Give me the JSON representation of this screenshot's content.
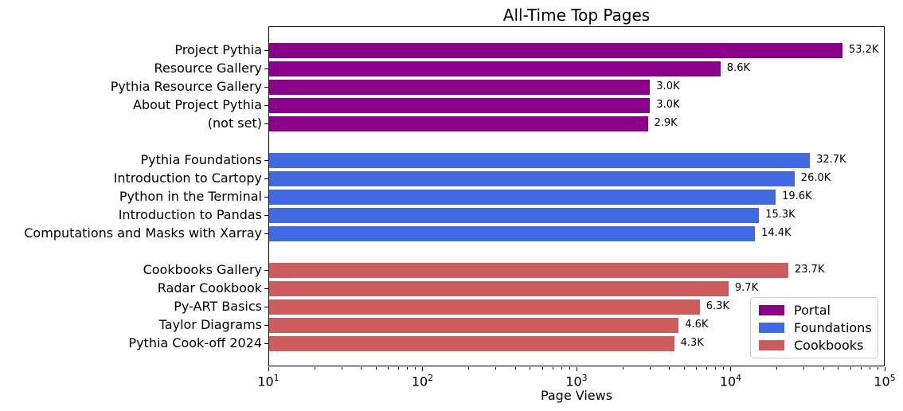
{
  "chart_data": {
    "type": "bar",
    "orientation": "horizontal",
    "title": "All-Time Top Pages",
    "xlabel": "Page Views",
    "x_scale": "log",
    "xlim": [
      10,
      100000
    ],
    "grid": false,
    "x_ticks": [
      {
        "base": "10",
        "exp": "1"
      },
      {
        "base": "10",
        "exp": "2"
      },
      {
        "base": "10",
        "exp": "3"
      },
      {
        "base": "10",
        "exp": "4"
      },
      {
        "base": "10",
        "exp": "5"
      }
    ],
    "legend": {
      "position": "lower right",
      "labels": [
        "Portal",
        "Foundations",
        "Cookbooks"
      ]
    },
    "groups": [
      {
        "name": "Portal",
        "color": "#8B008B",
        "items": [
          {
            "category": "Project Pythia",
            "value": 53200,
            "label": "53.2K"
          },
          {
            "category": "Resource Gallery",
            "value": 8600,
            "label": "8.6K"
          },
          {
            "category": "Pythia Resource Gallery",
            "value": 3000,
            "label": "3.0K"
          },
          {
            "category": "About Project Pythia",
            "value": 3000,
            "label": "3.0K"
          },
          {
            "category": "(not set)",
            "value": 2900,
            "label": "2.9K"
          }
        ]
      },
      {
        "name": "Foundations",
        "color": "#4169E1",
        "items": [
          {
            "category": "Pythia Foundations",
            "value": 32700,
            "label": "32.7K"
          },
          {
            "category": "Introduction to Cartopy",
            "value": 26000,
            "label": "26.0K"
          },
          {
            "category": "Python in the Terminal",
            "value": 19600,
            "label": "19.6K"
          },
          {
            "category": "Introduction to Pandas",
            "value": 15300,
            "label": "15.3K"
          },
          {
            "category": "Computations and Masks with Xarray",
            "value": 14400,
            "label": "14.4K"
          }
        ]
      },
      {
        "name": "Cookbooks",
        "color": "#CD5C5C",
        "items": [
          {
            "category": "Cookbooks Gallery",
            "value": 23700,
            "label": "23.7K"
          },
          {
            "category": "Radar Cookbook",
            "value": 9700,
            "label": "9.7K"
          },
          {
            "category": "Py-ART Basics",
            "value": 6300,
            "label": "6.3K"
          },
          {
            "category": "Taylor Diagrams",
            "value": 4600,
            "label": "4.6K"
          },
          {
            "category": "Pythia Cook-off 2024",
            "value": 4300,
            "label": "4.3K"
          }
        ]
      }
    ]
  }
}
